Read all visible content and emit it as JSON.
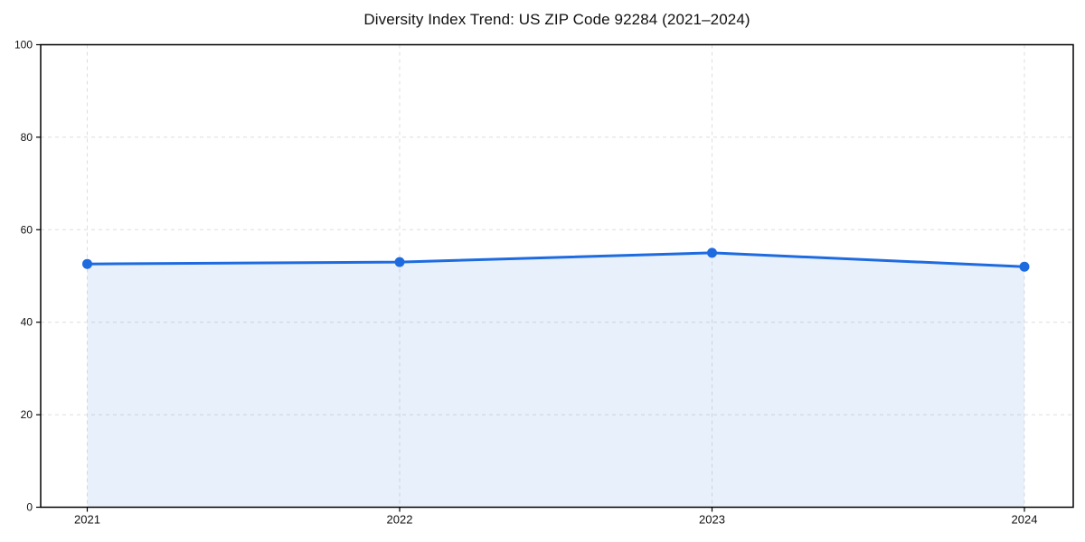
{
  "chart_data": {
    "type": "area",
    "title": "Diversity Index Trend: US ZIP Code 92284 (2021–2024)",
    "categories": [
      "2021",
      "2022",
      "2023",
      "2024"
    ],
    "series": [
      {
        "name": "Diversity Index",
        "values": [
          52.6,
          53,
          55,
          52
        ]
      }
    ],
    "xlabel": "",
    "ylabel": "",
    "ylim": [
      0,
      100
    ],
    "yticks": [
      0,
      20,
      40,
      60,
      80,
      100
    ],
    "grid": true,
    "grid_style": "dashed",
    "legend": "none",
    "colors": {
      "line": "#1e6be0",
      "marker": "#1e6be0",
      "fill": "#1e6be0",
      "fill_opacity": 0.1,
      "grid": "#dedede",
      "axis": "#000000",
      "text": "#111111",
      "background": "#ffffff"
    }
  }
}
